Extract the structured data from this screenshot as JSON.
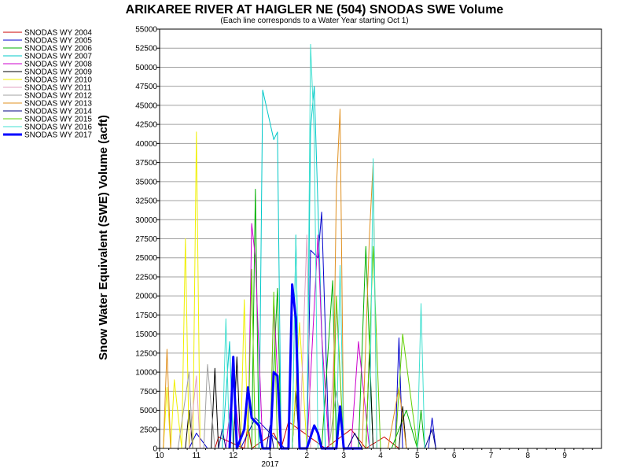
{
  "chart_data": {
    "type": "line",
    "title": "ARIKAREE RIVER AT HAIGLER NE (504) SNODAS SWE Volume",
    "subtitle": "(Each line corresponds to a Water Year starting Oct 1)",
    "ylabel": "Snow Water Equivalent (SWE) Volume (acft)",
    "xlabel": "",
    "ylim": [
      0,
      55000
    ],
    "yticks": [
      0,
      2500,
      5000,
      7500,
      10000,
      12500,
      15000,
      17500,
      20000,
      22500,
      25000,
      27500,
      30000,
      32500,
      35000,
      37500,
      40000,
      42500,
      45000,
      47500,
      50000,
      52500,
      55000
    ],
    "x_month_start": 10,
    "x_month_end": 22,
    "xticks": [
      {
        "pos": 10,
        "label": "10"
      },
      {
        "pos": 11,
        "label": "11"
      },
      {
        "pos": 12,
        "label": "12"
      },
      {
        "pos": 13,
        "label": "1"
      },
      {
        "pos": 14,
        "label": "2"
      },
      {
        "pos": 15,
        "label": "3"
      },
      {
        "pos": 16,
        "label": "4"
      },
      {
        "pos": 17,
        "label": "5"
      },
      {
        "pos": 18,
        "label": "6"
      },
      {
        "pos": 19,
        "label": "7"
      },
      {
        "pos": 20,
        "label": "8"
      },
      {
        "pos": 21,
        "label": "9"
      }
    ],
    "year_label": {
      "pos": 13,
      "label": "2017"
    },
    "grid": true,
    "legend_position": "left",
    "series": [
      {
        "name": "SNODAS WY 2004",
        "color": "#cc0000",
        "width": 1,
        "x": [
          11.1,
          11.5,
          11.6,
          12.3,
          12.4,
          12.5,
          13.1,
          13.3,
          13.5,
          14.5,
          15.2,
          15.6,
          16.1,
          16.5
        ],
        "y": [
          0,
          0,
          1500,
          0,
          3000,
          0,
          2000,
          0,
          3500,
          0,
          2500,
          0,
          1500,
          0
        ]
      },
      {
        "name": "SNODAS WY 2005",
        "color": "#0000cc",
        "width": 1,
        "x": [
          10.8,
          11.0,
          11.3,
          12.2,
          12.6,
          13.4,
          14.0,
          14.1,
          14.3,
          14.4,
          14.6,
          15.6,
          16.4,
          16.5,
          16.6,
          17.3,
          17.4,
          17.5
        ],
        "y": [
          0,
          2000,
          0,
          0,
          4000,
          0,
          0,
          26000,
          25000,
          31000,
          0,
          0,
          0,
          14500,
          0,
          0,
          4000,
          0
        ]
      },
      {
        "name": "SNODAS WY 2006",
        "color": "#00b000",
        "width": 1,
        "x": [
          12.5,
          12.6,
          12.7,
          13.0,
          13.2,
          13.3,
          13.4,
          14.4,
          14.7,
          14.8,
          15.4,
          15.6,
          15.8,
          16.3,
          16.7,
          17.0,
          17.1,
          17.2
        ],
        "y": [
          0,
          34000,
          0,
          0,
          21000,
          0,
          0,
          0,
          22000,
          0,
          0,
          26500,
          0,
          0,
          5000,
          0,
          5000,
          0
        ]
      },
      {
        "name": "SNODAS WY 2007",
        "color": "#00c8c8",
        "width": 1,
        "x": [
          11.7,
          11.9,
          12.0,
          12.7,
          12.8,
          13.1,
          13.2,
          13.3,
          13.6,
          13.7,
          13.8,
          14.0,
          14.1,
          14.2,
          14.5
        ],
        "y": [
          0,
          14000,
          0,
          0,
          47000,
          40500,
          41500,
          0,
          0,
          28000,
          0,
          0,
          42000,
          47500,
          0
        ]
      },
      {
        "name": "SNODAS WY 2008",
        "color": "#cc00cc",
        "width": 1,
        "x": [
          11.8,
          12.0,
          12.2,
          12.4,
          12.5,
          12.6,
          12.8,
          13.0,
          13.1,
          13.3,
          14.0,
          14.3,
          14.4,
          14.6,
          15.2,
          15.4,
          15.7,
          16.3
        ],
        "y": [
          0,
          9000,
          0,
          0,
          29500,
          25000,
          0,
          0,
          19500,
          0,
          0,
          28000,
          15000,
          0,
          0,
          14000,
          0,
          0
        ]
      },
      {
        "name": "SNODAS WY 2009",
        "color": "#000000",
        "width": 1,
        "x": [
          10.7,
          10.8,
          10.9,
          11.4,
          11.5,
          11.6,
          12.0,
          12.1,
          12.2,
          13.6,
          13.7,
          13.8,
          15.6,
          15.7,
          15.8,
          16.5,
          16.6,
          16.7
        ],
        "y": [
          0,
          5000,
          0,
          0,
          10500,
          0,
          0,
          12000,
          0,
          0,
          7500,
          0,
          0,
          12500,
          0,
          0,
          5500,
          0
        ]
      },
      {
        "name": "SNODAS WY 2010",
        "color": "#f0f000",
        "width": 1,
        "x": [
          10.1,
          10.2,
          10.3,
          10.4,
          10.6,
          10.7,
          10.8,
          10.9,
          11.0,
          11.1,
          12.2,
          12.3,
          12.4,
          13.6,
          13.8,
          14.0
        ],
        "y": [
          0,
          8000,
          0,
          9000,
          0,
          27500,
          0,
          0,
          41500,
          0,
          0,
          19500,
          0,
          0,
          16500,
          0
        ]
      },
      {
        "name": "SNODAS WY 2011",
        "color": "#e0a0c0",
        "width": 1,
        "x": [
          10.8,
          11.0,
          11.1,
          13.8,
          14.0,
          14.1,
          14.2,
          14.6,
          14.8,
          15.0,
          15.2
        ],
        "y": [
          0,
          9500,
          0,
          0,
          28000,
          0,
          0,
          0,
          18500,
          0,
          0
        ]
      },
      {
        "name": "SNODAS WY 2012",
        "color": "#a0a0a0",
        "width": 1,
        "x": [
          10.5,
          10.8,
          10.9,
          11.2,
          11.3,
          11.5,
          14.6,
          14.8,
          15.0
        ],
        "y": [
          0,
          10000,
          0,
          0,
          11000,
          0,
          0,
          7500,
          0
        ]
      },
      {
        "name": "SNODAS WY 2013",
        "color": "#e09020",
        "width": 1,
        "x": [
          10.1,
          10.2,
          10.3,
          14.7,
          14.8,
          14.9,
          15.0,
          15.5,
          15.7,
          15.8,
          15.9,
          16.2,
          16.5,
          16.7,
          16.9
        ],
        "y": [
          0,
          13000,
          0,
          0,
          34000,
          44500,
          0,
          0,
          28000,
          37500,
          0,
          0,
          8000,
          0,
          0
        ]
      },
      {
        "name": "SNODAS WY 2014",
        "color": "#000080",
        "width": 1,
        "x": [
          11.6,
          11.7,
          11.8,
          12.9,
          13.0,
          13.1,
          15.1,
          15.3,
          15.5,
          17.2,
          17.4,
          17.5
        ],
        "y": [
          0,
          2500,
          0,
          0,
          3000,
          0,
          0,
          2000,
          0,
          0,
          2500,
          0
        ]
      },
      {
        "name": "SNODAS WY 2015",
        "color": "#60d000",
        "width": 1,
        "x": [
          12.4,
          12.5,
          12.6,
          13.0,
          13.1,
          13.2,
          14.7,
          14.8,
          15.0,
          15.6,
          15.8,
          16.0,
          16.4,
          16.6,
          17.0,
          17.1
        ],
        "y": [
          0,
          23500,
          0,
          0,
          20500,
          0,
          0,
          20000,
          0,
          0,
          26500,
          0,
          0,
          15000,
          0,
          0
        ]
      },
      {
        "name": "SNODAS WY 2016",
        "color": "#40e0d0",
        "width": 1,
        "x": [
          11.7,
          11.8,
          11.9,
          13.6,
          13.7,
          13.8,
          14.0,
          14.1,
          14.2,
          14.3,
          14.8,
          14.9,
          15.0,
          15.7,
          15.8,
          15.9,
          16.0,
          17.0,
          17.1,
          17.2
        ],
        "y": [
          0,
          17000,
          0,
          0,
          28000,
          0,
          0,
          53000,
          41000,
          0,
          0,
          24000,
          0,
          0,
          38000,
          0,
          0,
          0,
          19000,
          0
        ]
      },
      {
        "name": "SNODAS WY 2017",
        "color": "#0000ff",
        "width": 3,
        "x": [
          11.9,
          12.0,
          12.1,
          12.3,
          12.4,
          12.5,
          12.6,
          12.7,
          12.8,
          13.0,
          13.1,
          13.2,
          13.3,
          13.5,
          13.6,
          13.7,
          13.8,
          14.0,
          14.2,
          14.3,
          14.4,
          14.5,
          14.8,
          14.9,
          15.0,
          15.3,
          15.5
        ],
        "y": [
          0,
          12000,
          0,
          2500,
          8000,
          4000,
          3500,
          3000,
          0,
          0,
          10000,
          9500,
          0,
          0,
          21500,
          17000,
          0,
          0,
          3000,
          2000,
          0,
          0,
          0,
          5500,
          0,
          0,
          0
        ]
      }
    ]
  }
}
